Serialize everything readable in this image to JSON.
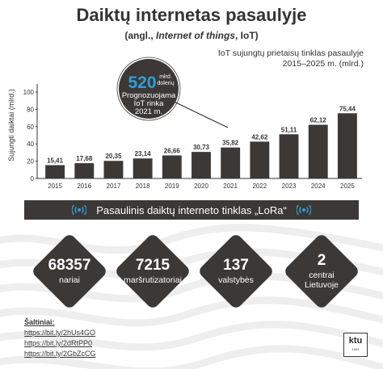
{
  "title": "Daiktų internetas pasaulyje",
  "subtitle_prefix": "(angl., ",
  "subtitle_italic": "Internet of things",
  "subtitle_suffix": ", IoT)",
  "caption_line1": "IoT sujungtų prietaisų tinklas pasaulyje",
  "caption_line2": "2015–2025 m. (mlrd.)",
  "callout": {
    "value": "520",
    "unit_line1": "mlrd.",
    "unit_line2": "dolerių",
    "text_line1": "Prognozuojama",
    "text_line2": "IoT rinka",
    "text_line3": "2021 m."
  },
  "colors": {
    "dark": "#3b3836",
    "accent": "#2f9fd9",
    "waves": "#eeeeee"
  },
  "chart_data": {
    "type": "bar",
    "categories": [
      "2015",
      "2016",
      "2017",
      "2018",
      "2019",
      "2020",
      "2021",
      "2022",
      "2023",
      "2024",
      "2025"
    ],
    "values": [
      15.41,
      17.68,
      20.35,
      23.14,
      26.66,
      30.73,
      35.82,
      42.62,
      51.11,
      62.12,
      75.44
    ],
    "value_labels": [
      "15,41",
      "17,68",
      "20,35",
      "23,14",
      "26,66",
      "30,73",
      "35,82",
      "42,62",
      "51,11",
      "62,12",
      "75,44"
    ],
    "ylabel": "Sujungti daiktai (mlrd.)",
    "yticks": [
      0,
      20,
      40,
      60,
      80,
      100
    ],
    "ylim": [
      0,
      100
    ],
    "grid": false,
    "bar_color": "#3b3836"
  },
  "banner": {
    "text": "Pasaulinis daiktų interneto tinklas „LoRa“",
    "left_icon": "wifi-icon",
    "right_icon": "wifi-icon"
  },
  "stats": [
    {
      "value": "68357",
      "label": "nariai",
      "label2": ""
    },
    {
      "value": "7215",
      "label": "maršrutizatoriai",
      "label2": ""
    },
    {
      "value": "137",
      "label": "valstybės",
      "label2": ""
    },
    {
      "value": "2",
      "label": "centrai",
      "label2": "Lietuvoje"
    }
  ],
  "sources": {
    "title": "Šaltiniai:",
    "links": [
      "https://bit.ly/2hUs4GO",
      "https://bit.ly/2dRtPP0",
      "https://bit.ly/2GbZcCG"
    ]
  },
  "logo": {
    "text": "ktu",
    "subtext": "1922"
  }
}
